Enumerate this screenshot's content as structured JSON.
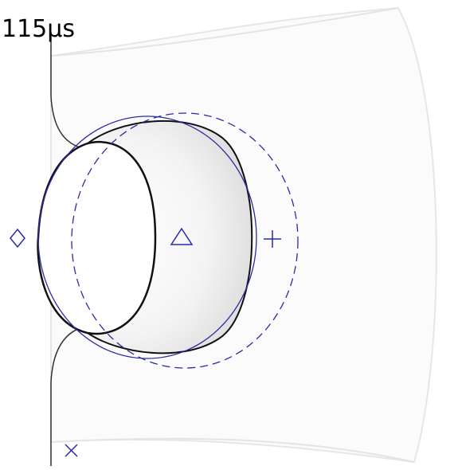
{
  "label": "115μs"
}
